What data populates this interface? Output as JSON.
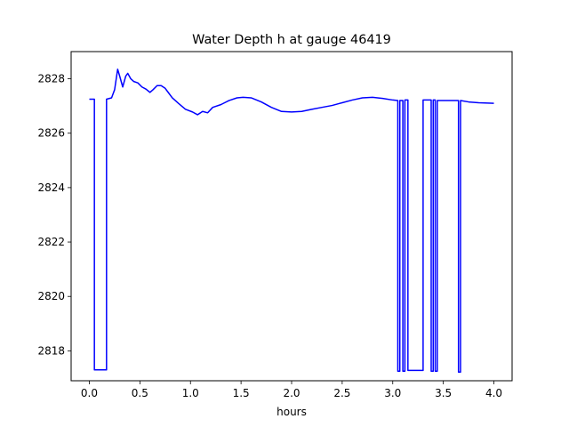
{
  "chart_data": {
    "type": "line",
    "title": "Water Depth h at gauge 46419",
    "xlabel": "hours",
    "ylabel": "",
    "xlim": [
      -0.18,
      4.18
    ],
    "ylim": [
      2816.9,
      2829.0
    ],
    "xticks": [
      0.0,
      0.5,
      1.0,
      1.5,
      2.0,
      2.5,
      3.0,
      3.5,
      4.0
    ],
    "xtick_labels": [
      "0.0",
      "0.5",
      "1.0",
      "1.5",
      "2.0",
      "2.5",
      "3.0",
      "3.5",
      "4.0"
    ],
    "yticks": [
      2818,
      2820,
      2822,
      2824,
      2826,
      2828
    ],
    "ytick_labels": [
      "2818",
      "2820",
      "2822",
      "2824",
      "2826",
      "2828"
    ],
    "grid": false,
    "series": [
      {
        "color": "#0000ff",
        "points": [
          [
            0.0,
            2827.25
          ],
          [
            0.05,
            2827.25
          ],
          [
            0.05,
            2817.3
          ],
          [
            0.17,
            2817.3
          ],
          [
            0.17,
            2827.25
          ],
          [
            0.22,
            2827.3
          ],
          [
            0.25,
            2827.6
          ],
          [
            0.28,
            2828.35
          ],
          [
            0.3,
            2828.1
          ],
          [
            0.33,
            2827.7
          ],
          [
            0.36,
            2828.1
          ],
          [
            0.38,
            2828.2
          ],
          [
            0.41,
            2828.0
          ],
          [
            0.44,
            2827.9
          ],
          [
            0.48,
            2827.85
          ],
          [
            0.52,
            2827.7
          ],
          [
            0.56,
            2827.62
          ],
          [
            0.6,
            2827.5
          ],
          [
            0.63,
            2827.6
          ],
          [
            0.67,
            2827.75
          ],
          [
            0.71,
            2827.75
          ],
          [
            0.75,
            2827.65
          ],
          [
            0.78,
            2827.5
          ],
          [
            0.82,
            2827.3
          ],
          [
            0.88,
            2827.1
          ],
          [
            0.95,
            2826.88
          ],
          [
            1.02,
            2826.78
          ],
          [
            1.07,
            2826.68
          ],
          [
            1.12,
            2826.8
          ],
          [
            1.17,
            2826.75
          ],
          [
            1.22,
            2826.95
          ],
          [
            1.3,
            2827.05
          ],
          [
            1.38,
            2827.2
          ],
          [
            1.46,
            2827.3
          ],
          [
            1.52,
            2827.32
          ],
          [
            1.6,
            2827.3
          ],
          [
            1.7,
            2827.15
          ],
          [
            1.8,
            2826.95
          ],
          [
            1.9,
            2826.8
          ],
          [
            2.0,
            2826.78
          ],
          [
            2.1,
            2826.8
          ],
          [
            2.2,
            2826.88
          ],
          [
            2.3,
            2826.95
          ],
          [
            2.4,
            2827.02
          ],
          [
            2.5,
            2827.12
          ],
          [
            2.6,
            2827.22
          ],
          [
            2.7,
            2827.3
          ],
          [
            2.8,
            2827.32
          ],
          [
            2.9,
            2827.28
          ],
          [
            3.0,
            2827.22
          ],
          [
            3.05,
            2827.2
          ],
          [
            3.05,
            2817.25
          ],
          [
            3.07,
            2817.25
          ],
          [
            3.07,
            2827.2
          ],
          [
            3.1,
            2827.2
          ],
          [
            3.1,
            2817.25
          ],
          [
            3.12,
            2817.25
          ],
          [
            3.12,
            2827.22
          ],
          [
            3.15,
            2827.22
          ],
          [
            3.15,
            2817.28
          ],
          [
            3.3,
            2817.28
          ],
          [
            3.3,
            2827.22
          ],
          [
            3.38,
            2827.22
          ],
          [
            3.38,
            2817.25
          ],
          [
            3.4,
            2817.25
          ],
          [
            3.4,
            2827.22
          ],
          [
            3.42,
            2827.22
          ],
          [
            3.42,
            2817.25
          ],
          [
            3.44,
            2817.25
          ],
          [
            3.44,
            2827.2
          ],
          [
            3.65,
            2827.2
          ],
          [
            3.65,
            2817.22
          ],
          [
            3.67,
            2817.22
          ],
          [
            3.67,
            2827.2
          ],
          [
            3.75,
            2827.15
          ],
          [
            3.85,
            2827.12
          ],
          [
            4.0,
            2827.1
          ]
        ]
      }
    ]
  }
}
